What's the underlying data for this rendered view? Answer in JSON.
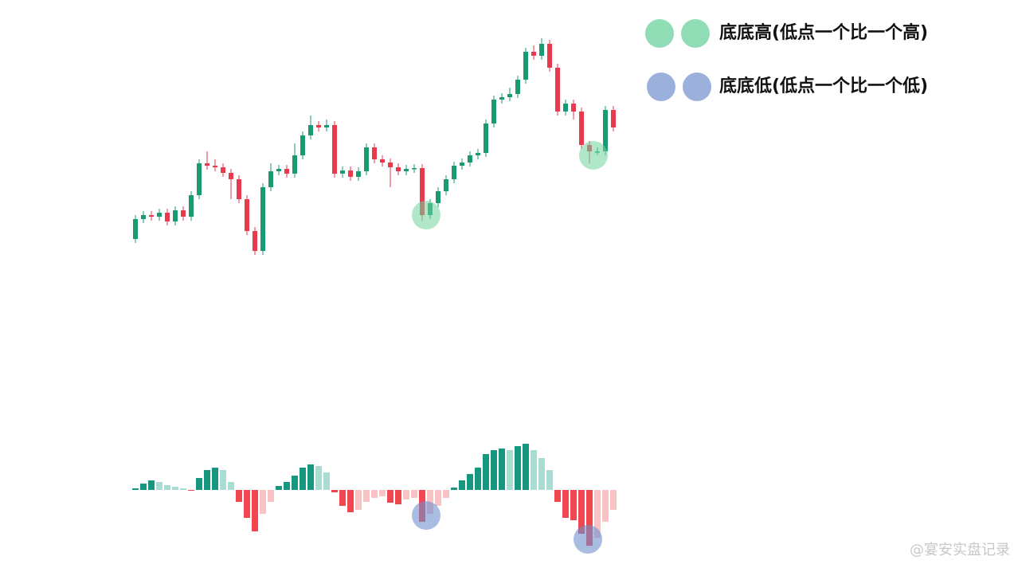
{
  "chart_data": [
    {
      "type": "candlestick",
      "color_up": "#1a9a72",
      "color_down": "#e83a4c",
      "ylim": [
        39,
        69
      ],
      "open": [
        42.0,
        44.5,
        45.0,
        44.8,
        45.3,
        44.2,
        45.6,
        44.8,
        47.5,
        51.5,
        51.2,
        51.0,
        50.3,
        49.5,
        47.0,
        43.0,
        40.5,
        48.5,
        50.5,
        50.8,
        50.2,
        52.5,
        55.0,
        56.3,
        56.0,
        56.3,
        50.2,
        50.6,
        49.8,
        50.5,
        53.5,
        52.0,
        51.6,
        51.0,
        50.5,
        50.8,
        50.9,
        45.0,
        46.5,
        48.0,
        49.5,
        51.2,
        51.6,
        52.5,
        52.8,
        56.5,
        59.5,
        59.8,
        60.2,
        62.0,
        65.5,
        65.0,
        66.5,
        63.5,
        58.0,
        59.0,
        58.0,
        53.8,
        53.0,
        53.0,
        58.2
      ],
      "close": [
        44.5,
        45.0,
        44.8,
        45.3,
        44.2,
        45.6,
        44.8,
        47.5,
        51.5,
        51.2,
        51.0,
        50.3,
        49.5,
        47.0,
        43.0,
        40.5,
        48.5,
        50.5,
        50.8,
        50.2,
        52.5,
        55.0,
        56.3,
        56.0,
        56.3,
        50.2,
        50.6,
        49.8,
        50.5,
        53.5,
        52.0,
        51.6,
        51.0,
        50.5,
        50.8,
        50.9,
        45.0,
        46.5,
        48.0,
        49.5,
        51.2,
        51.6,
        52.5,
        52.8,
        56.5,
        59.5,
        59.8,
        60.2,
        62.0,
        65.5,
        65.0,
        66.5,
        63.5,
        58.0,
        59.0,
        58.0,
        53.8,
        53.0,
        53.0,
        58.2,
        56.0
      ],
      "high": [
        45.0,
        45.5,
        45.5,
        45.8,
        45.8,
        46.1,
        46.1,
        48.0,
        52.0,
        53.0,
        52.0,
        51.5,
        50.8,
        50.0,
        47.5,
        43.5,
        49.0,
        51.5,
        51.3,
        51.3,
        54.0,
        55.5,
        57.5,
        56.8,
        57.0,
        56.8,
        51.1,
        51.1,
        51.0,
        54.0,
        54.0,
        52.5,
        52.1,
        51.5,
        51.3,
        51.4,
        51.4,
        47.0,
        48.5,
        50.0,
        51.7,
        52.1,
        53.0,
        53.3,
        57.0,
        60.0,
        60.3,
        61.0,
        62.5,
        66.0,
        66.3,
        67.2,
        67.0,
        64.0,
        59.5,
        59.5,
        58.5,
        54.3,
        53.5,
        58.7,
        58.7
      ],
      "low": [
        41.5,
        44.0,
        44.3,
        44.3,
        43.7,
        43.7,
        44.3,
        44.3,
        47.0,
        50.7,
        50.5,
        49.8,
        47.0,
        46.5,
        42.5,
        40.0,
        40.0,
        48.0,
        50.0,
        49.7,
        49.7,
        52.0,
        54.5,
        55.5,
        55.5,
        49.7,
        49.7,
        49.3,
        49.3,
        50.0,
        51.5,
        51.1,
        48.5,
        50.0,
        50.0,
        50.3,
        44.3,
        44.5,
        46.0,
        47.5,
        49.0,
        50.7,
        51.1,
        52.0,
        52.3,
        56.0,
        59.0,
        59.3,
        59.7,
        61.5,
        64.5,
        64.5,
        63.0,
        57.5,
        57.5,
        57.0,
        53.3,
        51.5,
        52.5,
        52.5,
        55.5
      ]
    },
    {
      "type": "histogram",
      "color_up_strong": "#17977f",
      "color_up_weak": "#a9ddd4",
      "color_down_strong": "#f0464f",
      "color_down_weak": "#f9c2c5",
      "ylim": [
        -7.5,
        6.5
      ],
      "values": [
        0.2,
        0.8,
        1.2,
        1.0,
        0.6,
        0.4,
        0.2,
        -0.1,
        1.5,
        2.5,
        2.8,
        2.5,
        1.0,
        -1.5,
        -3.5,
        -5.2,
        -3.0,
        -1.5,
        0.5,
        1.0,
        1.8,
        2.8,
        3.2,
        3.0,
        2.2,
        -0.3,
        -2.0,
        -2.8,
        -2.5,
        -1.5,
        -1.0,
        -0.8,
        -1.6,
        -1.8,
        -1.2,
        -1.0,
        -4.0,
        -3.0,
        -2.0,
        -1.0,
        0.3,
        1.2,
        2.0,
        2.8,
        4.5,
        5.0,
        5.2,
        5.0,
        5.5,
        5.8,
        5.0,
        4.0,
        2.5,
        -1.5,
        -3.5,
        -3.8,
        -5.5,
        -7.0,
        -6.0,
        -4.0,
        -2.5
      ]
    }
  ],
  "legend": [
    "底底高(低点一个比一个高)",
    "底底低(低点一个比一个低)"
  ],
  "watermark": "@宴安实盘记录"
}
